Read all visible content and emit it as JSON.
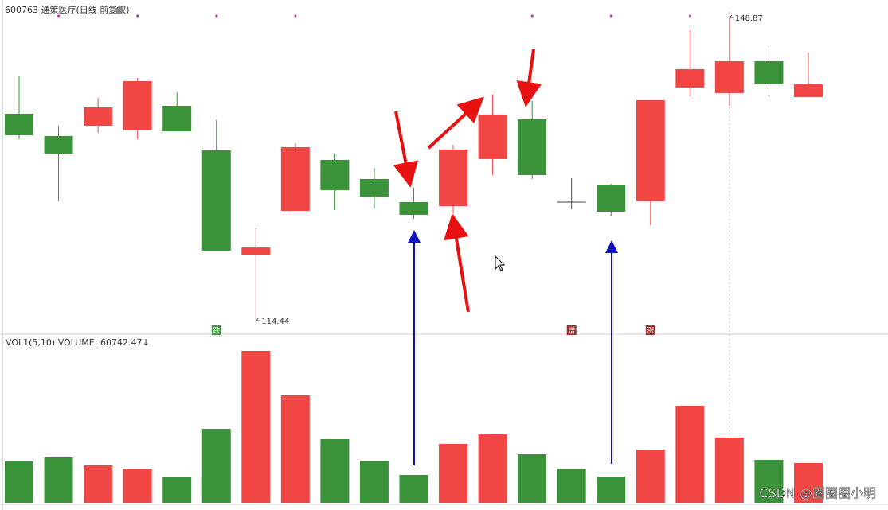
{
  "chart_data": [
    {
      "type": "candlestick",
      "title": "600763 通策医疗(日线 前复权)",
      "open": [
        137.94,
        135.41,
        136.58,
        136.04,
        138.84,
        133.78,
        121.94,
        126.91,
        132.7,
        130.53,
        127.91,
        127.45,
        132.79,
        137.3,
        127.91,
        129.89,
        128.0,
        140.92,
        140.29,
        143.9,
        139.83
      ],
      "high": [
        142.18,
        136.58,
        139.74,
        142.0,
        140.38,
        137.21,
        124.92,
        134.59,
        133.42,
        131.79,
        129.53,
        134.41,
        140.11,
        139.38,
        130.62,
        129.98,
        139.47,
        147.43,
        148.87,
        145.71,
        144.9
      ],
      "low": [
        135.04,
        128.0,
        135.77,
        135.04,
        135.95,
        122.39,
        114.44,
        126.91,
        127.0,
        127.18,
        126.01,
        126.64,
        130.98,
        130.53,
        127.09,
        126.37,
        125.28,
        139.92,
        138.84,
        139.92,
        139.83
      ],
      "close": [
        135.5,
        133.42,
        138.66,
        141.64,
        135.95,
        122.39,
        122.75,
        134.14,
        129.26,
        128.54,
        126.46,
        133.87,
        137.85,
        130.98,
        127.91,
        126.82,
        139.47,
        143.0,
        143.9,
        141.28,
        141.28
      ],
      "up_color": "#f24645",
      "down_color": "#3a9239",
      "flat_color": "#444444",
      "ylim": [
        113.36,
        149.5
      ],
      "annotations": [
        {
          "text": "114.44",
          "value": 114.44,
          "index": 6
        },
        {
          "text": "148.87",
          "value": 148.87,
          "index": 18
        }
      ],
      "badges": [
        {
          "text": "跌",
          "index": 5,
          "color": "#3a9239"
        },
        {
          "text": "增",
          "index": 14,
          "color": "#a03030"
        },
        {
          "text": "涨",
          "index": 16,
          "color": "#a03030"
        }
      ]
    },
    {
      "type": "bar",
      "title": "VOL1(5,10) VOLUME: 60742.47↓",
      "values": [
        63170,
        69244,
        57096,
        52236,
        38874,
        112976,
        232027,
        163998,
        97184,
        64384,
        42518,
        89895,
        104473,
        74103,
        52236,
        40088,
        81392,
        148206,
        99614,
        65599,
        60742.47
      ],
      "ylim": [
        0,
        245390
      ]
    }
  ],
  "watermark": "CSDN @圈圈圈小明"
}
